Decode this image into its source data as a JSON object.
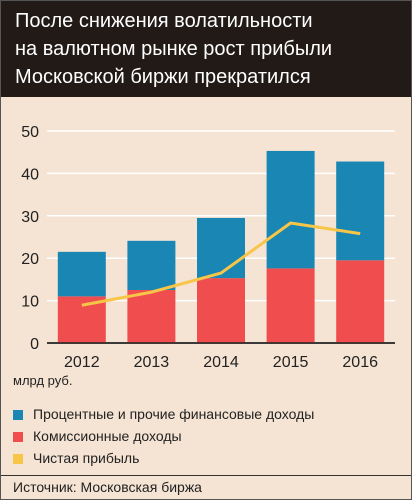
{
  "header": {
    "title_lines": [
      "После снижения волатильности",
      "на валютном рынке рост прибыли",
      "Московской биржи прекратился"
    ]
  },
  "chart_data": {
    "type": "bar",
    "stacked": true,
    "categories": [
      "2012",
      "2013",
      "2014",
      "2015",
      "2016"
    ],
    "series": [
      {
        "name": "Комиссионные доходы",
        "kind": "bar",
        "color": "#f04e4e",
        "values": [
          11.0,
          12.5,
          15.3,
          17.6,
          19.5
        ]
      },
      {
        "name": "Процентные и прочие финансовые доходы",
        "kind": "bar",
        "color": "#1a86b4",
        "values": [
          10.5,
          11.6,
          14.2,
          27.7,
          23.3
        ]
      },
      {
        "name": "Чистая прибыль",
        "kind": "line",
        "color": "#f7c548",
        "values": [
          8.9,
          12.0,
          16.5,
          28.3,
          25.8
        ]
      }
    ],
    "ylim": [
      0,
      50
    ],
    "yticks": [
      0,
      10,
      20,
      30,
      40,
      50
    ],
    "ylabel": "млрд руб.",
    "grid": true,
    "legend_position": "bottom"
  },
  "legend_order": [
    1,
    0,
    2
  ],
  "source": "Источник: Московская биржа"
}
